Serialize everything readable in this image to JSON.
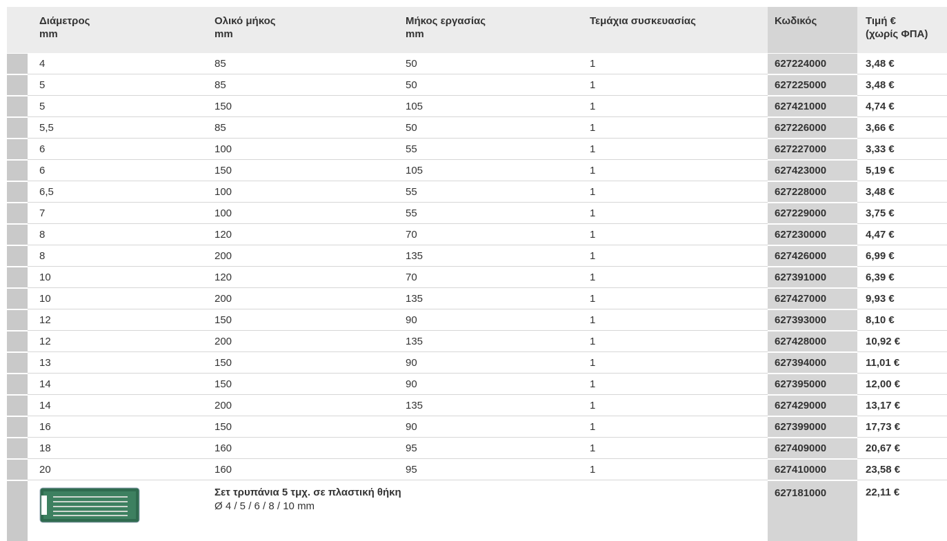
{
  "table": {
    "header": [
      [
        "Διάμετρος",
        "mm"
      ],
      [
        "Ολικό μήκος",
        "mm"
      ],
      [
        "Μήκος εργασίας",
        "mm"
      ],
      [
        "Τεμάχια συσκευασίας"
      ],
      [
        "Κωδικός"
      ],
      [
        "Τιμή €",
        "(χωρίς ΦΠΑ)"
      ]
    ],
    "rows": [
      [
        "4",
        "85",
        "50",
        "1",
        "627224000",
        "3,48 €"
      ],
      [
        "5",
        "85",
        "50",
        "1",
        "627225000",
        "3,48 €"
      ],
      [
        "5",
        "150",
        "105",
        "1",
        "627421000",
        "4,74 €"
      ],
      [
        "5,5",
        "85",
        "50",
        "1",
        "627226000",
        "3,66 €"
      ],
      [
        "6",
        "100",
        "55",
        "1",
        "627227000",
        "3,33 €"
      ],
      [
        "6",
        "150",
        "105",
        "1",
        "627423000",
        "5,19 €"
      ],
      [
        "6,5",
        "100",
        "55",
        "1",
        "627228000",
        "3,48 €"
      ],
      [
        "7",
        "100",
        "55",
        "1",
        "627229000",
        "3,75 €"
      ],
      [
        "8",
        "120",
        "70",
        "1",
        "627230000",
        "4,47 €"
      ],
      [
        "8",
        "200",
        "135",
        "1",
        "627426000",
        "6,99 €"
      ],
      [
        "10",
        "120",
        "70",
        "1",
        "627391000",
        "6,39 €"
      ],
      [
        "10",
        "200",
        "135",
        "1",
        "627427000",
        "9,93 €"
      ],
      [
        "12",
        "150",
        "90",
        "1",
        "627393000",
        "8,10 €"
      ],
      [
        "12",
        "200",
        "135",
        "1",
        "627428000",
        "10,92 €"
      ],
      [
        "13",
        "150",
        "90",
        "1",
        "627394000",
        "11,01 €"
      ],
      [
        "14",
        "150",
        "90",
        "1",
        "627395000",
        "12,00 €"
      ],
      [
        "14",
        "200",
        "135",
        "1",
        "627429000",
        "13,17 €"
      ],
      [
        "16",
        "150",
        "90",
        "1",
        "627399000",
        "17,73 €"
      ],
      [
        "18",
        "160",
        "95",
        "1",
        "627409000",
        "20,67 €"
      ],
      [
        "20",
        "160",
        "95",
        "1",
        "627410000",
        "23,58 €"
      ]
    ],
    "set": {
      "title": "Σετ τρυπάνια 5 τμχ. σε πλαστική θήκη",
      "subtitle": "Ø 4 / 5 / 6 / 8 / 10 mm",
      "code": "627181000",
      "price": "22,11 €"
    }
  }
}
